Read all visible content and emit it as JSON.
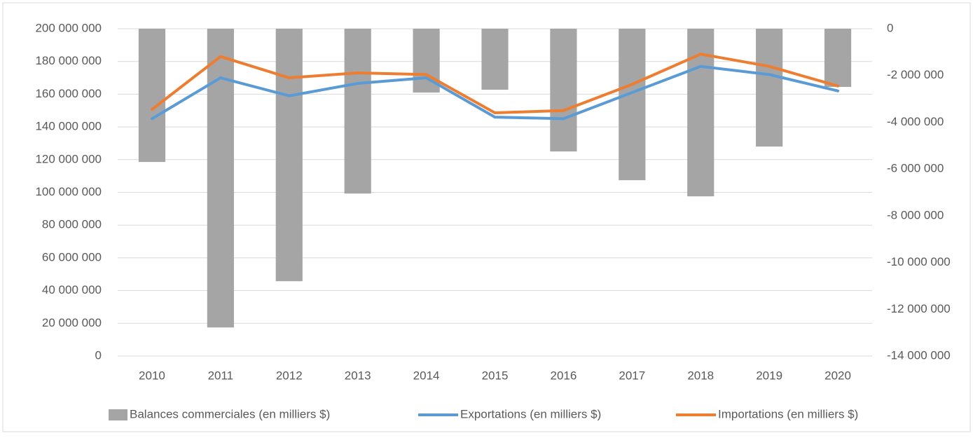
{
  "chart_data": {
    "type": "bar-line",
    "categories": [
      "2010",
      "2011",
      "2012",
      "2013",
      "2014",
      "2015",
      "2016",
      "2017",
      "2018",
      "2019",
      "2020"
    ],
    "series": [
      {
        "name": "Balances commerciales (en milliers $)",
        "type": "bar",
        "axis": "y2",
        "color": "#a5a5a5",
        "values": [
          -5700000,
          -12780000,
          -10800000,
          -7050000,
          -2730000,
          -2610000,
          -5250000,
          -6480000,
          -7170000,
          -5040000,
          -2490000
        ]
      },
      {
        "name": "Exportations (en milliers $)",
        "type": "line",
        "axis": "y",
        "color": "#5b9bd5",
        "values": [
          145000000,
          170000000,
          159000000,
          166600000,
          170000000,
          146000000,
          145000000,
          161000000,
          177000000,
          172000000,
          162000000
        ]
      },
      {
        "name": "Importations (en milliers $)",
        "type": "line",
        "axis": "y",
        "color": "#ed7d31",
        "values": [
          150700000,
          183000000,
          170000000,
          173000000,
          172000000,
          148600000,
          150000000,
          166000000,
          184500000,
          177000000,
          165000000
        ]
      }
    ],
    "ylim": [
      0,
      200000000
    ],
    "yticks": [
      0,
      {
        "value": 20000000,
        "label": "20 000 000"
      },
      {
        "value": 40000000,
        "label": "40 000 000"
      },
      {
        "value": 60000000,
        "label": "60 000 000"
      },
      {
        "value": 80000000,
        "label": "80 000 000"
      },
      {
        "value": 100000000,
        "label": "100 000 000"
      },
      {
        "value": 120000000,
        "label": "120 000 000"
      },
      {
        "value": 140000000,
        "label": "140 000 000"
      },
      {
        "value": 160000000,
        "label": "160 000 000"
      },
      {
        "value": 180000000,
        "label": "180 000 000"
      },
      {
        "value": 200000000,
        "label": "200 000 000"
      }
    ],
    "y2lim": [
      -14000000,
      0
    ],
    "y2ticks": [
      {
        "value": -14000000,
        "label": "-14 000 000"
      },
      {
        "value": -12000000,
        "label": "-12 000 000"
      },
      {
        "value": -10000000,
        "label": "-10 000 000"
      },
      {
        "value": -8000000,
        "label": "-8 000 000"
      },
      {
        "value": -6000000,
        "label": "-6 000 000"
      },
      {
        "value": -4000000,
        "label": "-4 000 000"
      },
      {
        "value": -2000000,
        "label": "-2 000 000"
      },
      0
    ],
    "grid": true,
    "legend": "bottom"
  }
}
